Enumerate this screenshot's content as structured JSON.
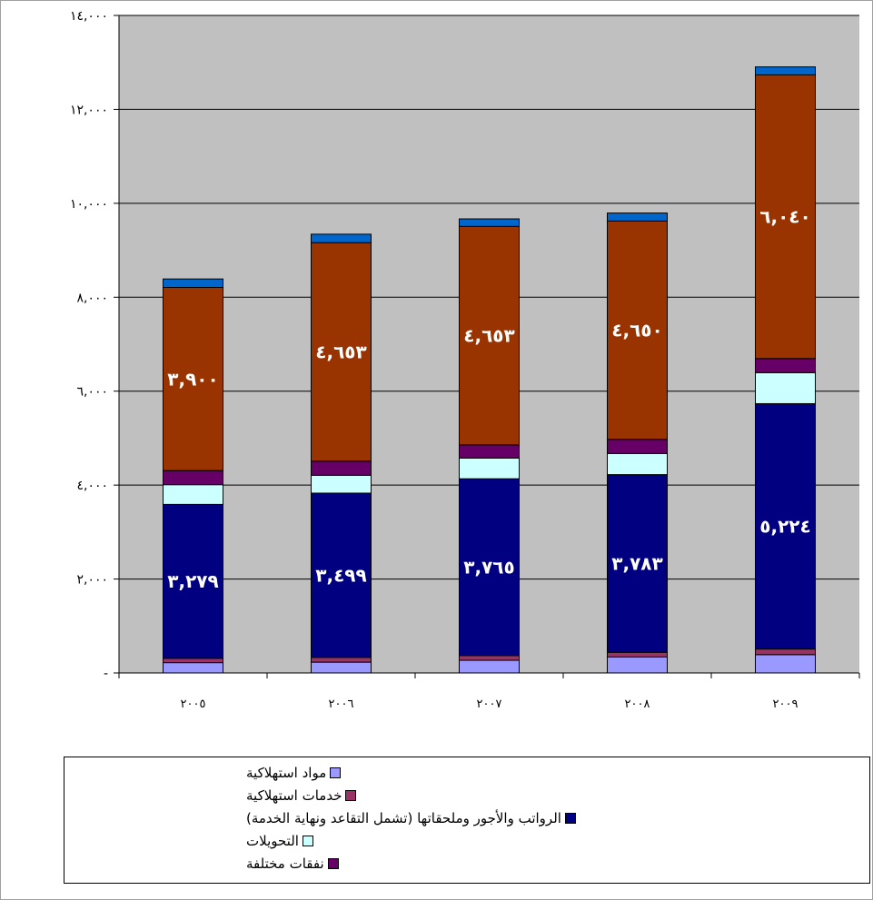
{
  "chart_data": {
    "type": "bar",
    "stacked": true,
    "categories": [
      "٢٠٠٥",
      "٢٠٠٦",
      "٢٠٠٧",
      "٢٠٠٨",
      "٢٠٠٩"
    ],
    "ylim": [
      0,
      14000
    ],
    "y_ticks": [
      0,
      2000,
      4000,
      6000,
      8000,
      10000,
      12000,
      14000
    ],
    "y_tick_labels": [
      "-",
      "٢,٠٠٠",
      "٤,٠٠٠",
      "٦,٠٠٠",
      "٨,٠٠٠",
      "١٠,٠٠٠",
      "١٢,٠٠٠",
      "١٤,٠٠٠"
    ],
    "grid": true,
    "legend_position": "bottom",
    "plot_background": "#c0c0c0",
    "series": [
      {
        "name": "مواد استهلاكية",
        "color": "#9999ff",
        "values": [
          220,
          230,
          270,
          340,
          390
        ],
        "labels": [
          "",
          "",
          "",
          "",
          ""
        ]
      },
      {
        "name": "خدمات استهلاكية",
        "color": "#993366",
        "values": [
          90,
          100,
          100,
          100,
          120
        ],
        "labels": [
          "",
          "",
          "",
          "",
          ""
        ]
      },
      {
        "name": "الرواتب والأجور وملحقاتها (تشمل التقاعد ونهاية الخدمة)",
        "color": "#000080",
        "values": [
          3279,
          3499,
          3765,
          3783,
          5224
        ],
        "labels": [
          "٣,٢٧٩",
          "٣,٤٩٩",
          "٣,٧٦٥",
          "٣,٧٨٣",
          "٥,٢٢٤"
        ]
      },
      {
        "name": "التحويلات",
        "color": "#ccffff",
        "values": [
          420,
          380,
          440,
          450,
          660
        ],
        "labels": [
          "",
          "",
          "",
          "",
          ""
        ]
      },
      {
        "name": "نفقات مختلفة",
        "color": "#660066",
        "values": [
          300,
          300,
          280,
          300,
          300
        ],
        "labels": [
          "",
          "",
          "",
          "",
          ""
        ]
      },
      {
        "name": "",
        "color": "#993300",
        "values": [
          3900,
          4653,
          4653,
          4650,
          6040
        ],
        "labels": [
          "٣,٩٠٠",
          "٤,٦٥٣",
          "٤,٦٥٣",
          "٤,٦٥٠",
          "٦,٠٤٠"
        ]
      },
      {
        "name": "",
        "color": "#0066cc",
        "values": [
          180,
          180,
          160,
          170,
          170
        ],
        "labels": [
          "",
          "",
          "",
          "",
          ""
        ]
      }
    ]
  }
}
